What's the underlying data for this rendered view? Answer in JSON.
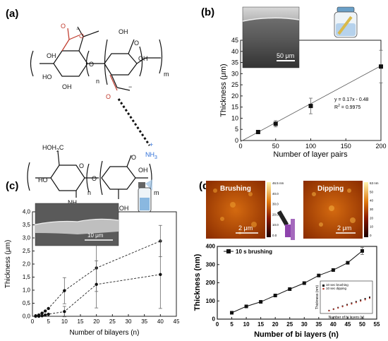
{
  "panels": {
    "a": {
      "label": "(a)"
    },
    "b": {
      "label": "(b)"
    },
    "c": {
      "label": "(c)"
    },
    "d": {
      "label": "(d)"
    }
  },
  "molecule": {
    "upper_n": "n",
    "upper_m": "m",
    "lower_n": "n",
    "lower_m": "m",
    "oh": "OH",
    "ho": "HO",
    "o": "O",
    "neg": "−",
    "nh3": "NH",
    "nh3_sub": "3",
    "plus": "+",
    "hoh2c": "HOH",
    "hoh2c_sub": "2",
    "hoh2c_c": "C",
    "nh": "NH",
    "c_equals": "C",
    "ch3": "CH",
    "ch3_sub": "3",
    "ch2oh": "CH",
    "ch2oh_sub": "2",
    "ch2oh_oh": "OH"
  },
  "inset_b": {
    "scalebar": "50  μm"
  },
  "inset_c": {
    "scalebar": "10 μm"
  },
  "afm": {
    "brushing": {
      "title": "Brushing",
      "scalebar": "2 μm",
      "colorbar_ticks": [
        "46.5 nm",
        "40.0",
        "30.0",
        "20.0",
        "10.0",
        "0.0"
      ]
    },
    "dipping": {
      "title": "Dipping",
      "scalebar": "2 μm",
      "colorbar_ticks": [
        "63 nm",
        "50",
        "40",
        "30",
        "20",
        "10",
        "0"
      ]
    }
  },
  "chart_data": [
    {
      "panel": "b",
      "type": "scatter",
      "xlabel": "Number of layer pairs",
      "ylabel": "Thickness (μm)",
      "xlim": [
        0,
        200
      ],
      "ylim": [
        0,
        45
      ],
      "xticks": [
        "0",
        "50",
        "100",
        "150",
        "200"
      ],
      "yticks": [
        "0",
        "5",
        "10",
        "15",
        "20",
        "25",
        "30",
        "35",
        "40",
        "45"
      ],
      "points": [
        {
          "x": 25,
          "y": 3.8,
          "err": 0.6
        },
        {
          "x": 50,
          "y": 7.5,
          "err": 1.4
        },
        {
          "x": 100,
          "y": 15.5,
          "err": 3.5
        },
        {
          "x": 200,
          "y": 33.2,
          "err": 7.3
        }
      ],
      "fit": {
        "slope": 0.17,
        "intercept": -0.48
      },
      "annotation_line1": "y = 0.17x - 0.48",
      "annotation_line2_prefix": "R",
      "annotation_line2_sup": "2",
      "annotation_line2_suffix": " = 0.9975"
    },
    {
      "panel": "c",
      "type": "scatter",
      "xlabel": "Number of bilayers (n)",
      "ylabel": "Thickness (μm)",
      "xlim": [
        0,
        45
      ],
      "ylim": [
        0,
        4
      ],
      "xticks": [
        "0",
        "5",
        "10",
        "15",
        "20",
        "25",
        "30",
        "35",
        "40",
        "45"
      ],
      "yticks": [
        "0,0",
        "0,5",
        "1,0",
        "1,5",
        "2,0",
        "2,5",
        "3,0",
        "3,5",
        "4,0"
      ],
      "series": [
        {
          "values": [
            {
              "x": 1,
              "y": 0.02
            },
            {
              "x": 2,
              "y": 0.05
            },
            {
              "x": 3,
              "y": 0.12
            },
            {
              "x": 4,
              "y": 0.2
            },
            {
              "x": 5,
              "y": 0.3
            },
            {
              "x": 10,
              "y": 0.98,
              "err": 0.5
            },
            {
              "x": 20,
              "y": 1.85,
              "err": 0.9
            },
            {
              "x": 40,
              "y": 2.88,
              "err": 0.6
            }
          ]
        },
        {
          "values": [
            {
              "x": 1,
              "y": 0.0
            },
            {
              "x": 2,
              "y": 0.0
            },
            {
              "x": 3,
              "y": 0.02
            },
            {
              "x": 4,
              "y": 0.05
            },
            {
              "x": 5,
              "y": 0.08
            },
            {
              "x": 10,
              "y": 0.18,
              "err": 0.2
            },
            {
              "x": 20,
              "y": 1.22,
              "err": 0.9
            },
            {
              "x": 40,
              "y": 1.6,
              "err": 1.3
            }
          ]
        }
      ]
    },
    {
      "panel": "d",
      "type": "line",
      "xlabel": "Number of bi layers (n)",
      "ylabel": "Thickness (nm)",
      "xlim": [
        0,
        55
      ],
      "ylim": [
        0,
        400
      ],
      "xticks": [
        "0",
        "5",
        "10",
        "15",
        "20",
        "25",
        "30",
        "35",
        "40",
        "45",
        "50",
        "55"
      ],
      "yticks": [
        "0",
        "100",
        "200",
        "300",
        "400"
      ],
      "legend": "10 s brushing",
      "series": [
        {
          "name": "10 s brushing",
          "values": [
            {
              "x": 5,
              "y": 35
            },
            {
              "x": 10,
              "y": 70
            },
            {
              "x": 15,
              "y": 95
            },
            {
              "x": 20,
              "y": 130
            },
            {
              "x": 25,
              "y": 165
            },
            {
              "x": 30,
              "y": 198
            },
            {
              "x": 35,
              "y": 240
            },
            {
              "x": 40,
              "y": 270
            },
            {
              "x": 45,
              "y": 310
            },
            {
              "x": 50,
              "y": 375,
              "err": 20
            }
          ]
        }
      ]
    },
    {
      "panel": "d-inset",
      "type": "scatter",
      "xlabel": "Number of bi layers (n)",
      "ylabel": "Thickness (nm)",
      "xlim": [
        0,
        20
      ],
      "ylim": [
        0,
        200
      ],
      "xticks": [
        "0",
        "2",
        "4",
        "6",
        "8",
        "10",
        "12",
        "14",
        "16",
        "18",
        "20"
      ],
      "yticks": [
        "0",
        "50",
        "100",
        "150",
        "200"
      ],
      "series": [
        {
          "name": "10 sec brushing",
          "values": [
            {
              "x": 2,
              "y": 14
            },
            {
              "x": 4,
              "y": 28
            },
            {
              "x": 6,
              "y": 42
            },
            {
              "x": 8,
              "y": 56
            },
            {
              "x": 10,
              "y": 70
            },
            {
              "x": 12,
              "y": 84
            },
            {
              "x": 14,
              "y": 98
            },
            {
              "x": 16,
              "y": 112
            },
            {
              "x": 18,
              "y": 126
            },
            {
              "x": 20,
              "y": 140
            }
          ]
        },
        {
          "name": "10 sec dipping",
          "values": [
            {
              "x": 2,
              "y": 12
            },
            {
              "x": 4,
              "y": 25
            },
            {
              "x": 6,
              "y": 38
            },
            {
              "x": 8,
              "y": 51
            },
            {
              "x": 10,
              "y": 64
            },
            {
              "x": 12,
              "y": 77
            },
            {
              "x": 14,
              "y": 90
            },
            {
              "x": 16,
              "y": 103
            },
            {
              "x": 18,
              "y": 116
            },
            {
              "x": 20,
              "y": 130
            }
          ]
        }
      ]
    }
  ]
}
